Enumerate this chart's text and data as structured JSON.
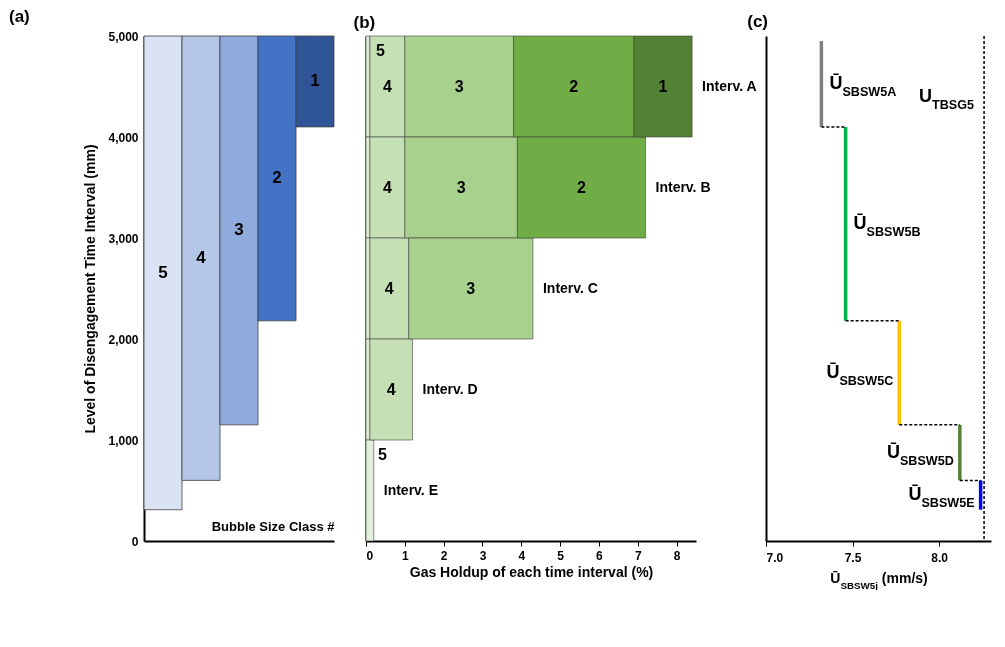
{
  "chart_data": [
    {
      "type": "bar",
      "title": "(a)",
      "xlabel": "Bubble Size Class #",
      "ylabel": "Level of Disengagement Time Interval (mm)",
      "categories": [
        null,
        null,
        null,
        null,
        null
      ],
      "annotations": [
        "5",
        "4",
        "3",
        "2",
        "1"
      ],
      "base": [
        310,
        600,
        1150,
        2180,
        4100
      ],
      "values": [
        4690,
        4400,
        3850,
        2820,
        900
      ],
      "colors": [
        "#dae3f3",
        "#b4c7e7",
        "#8faadc",
        "#4472c4",
        "#2f5597"
      ],
      "ylim": [
        0,
        5000
      ],
      "yticks": [
        0,
        {
          "value": 1000,
          "label": "1,000"
        },
        {
          "value": 2000,
          "label": "2,000"
        },
        {
          "value": 3000,
          "label": "3,000"
        },
        {
          "value": 4000,
          "label": "4,000"
        },
        {
          "value": 5000,
          "label": "5,000"
        }
      ],
      "tick_labels": "y"
    },
    {
      "type": "bar",
      "orientation": "horizontal",
      "stacked": true,
      "title": "(b)",
      "xlabel": "Gas Holdup of each time interval (%)",
      "categories": [
        "Interv. A",
        "Interv. B",
        "Interv. C",
        "Interv. D",
        "Interv. E"
      ],
      "series": [
        {
          "color": "#e2efda",
          "values": [
            0.1,
            0.1,
            0.1,
            0.1,
            0.2
          ]
        },
        {
          "name": "4",
          "color": "#c5e0b4",
          "values": [
            0.9,
            0.9,
            1.0,
            1.1,
            null
          ]
        },
        {
          "name": "3",
          "color": "#a9d18e",
          "values": [
            2.8,
            2.9,
            3.2,
            null,
            null
          ]
        },
        {
          "name": "2",
          "color": "#70ad47",
          "values": [
            3.1,
            3.3,
            null,
            null,
            null
          ]
        },
        {
          "name": "1",
          "color": "#548235",
          "values": [
            1.5,
            null,
            null,
            null,
            null
          ]
        }
      ],
      "xlim": [
        0,
        8.5
      ],
      "xticks": [
        0,
        1,
        2,
        3,
        4,
        5,
        6,
        7,
        8
      ],
      "tick_labels": "x",
      "annotations": [
        {
          "text": "5",
          "x": 0.05,
          "y": "Interv. A"
        },
        {
          "text": "5",
          "x": 0.1,
          "y": "Interv. E"
        }
      ]
    },
    {
      "type": "line",
      "title": "(c)",
      "xlabel": "Ū$_{SBSW5j}$ (mm/s)",
      "xlim": [
        7.0,
        8.3
      ],
      "xticks": [
        {
          "value": 7,
          "label": "7.0"
        },
        7.5,
        {
          "value": 8,
          "label": "8.0"
        }
      ],
      "ylim": [
        0,
        5000
      ],
      "tick_labels": "x",
      "series": [
        {
          "name": "Ū$_{SBSW5A}$",
          "color": "#7f7f7f",
          "x": [
            7.32,
            7.32
          ],
          "values": [
            4100,
            4950
          ]
        },
        {
          "name": "Ū$_{SBSW5B}$",
          "color": "#00b050",
          "x": [
            7.46,
            7.46
          ],
          "values": [
            2180,
            4100
          ]
        },
        {
          "name": "Ū$_{SBSW5C}$",
          "color": "#ffc000",
          "x": [
            7.77,
            7.77
          ],
          "values": [
            1150,
            2180
          ]
        },
        {
          "name": "Ū$_{SBSW5D}$",
          "color": "#548235",
          "x": [
            8.12,
            8.12
          ],
          "values": [
            600,
            1150
          ]
        },
        {
          "name": "Ū$_{SBSW5E}$",
          "color": "#0000ff",
          "x": [
            8.24,
            8.24
          ],
          "values": [
            310,
            600
          ]
        },
        {
          "color": "#000000",
          "line_style": "dashed",
          "x": [
            7.32,
            7.46
          ],
          "values": [
            4100,
            4100
          ]
        },
        {
          "color": "#000000",
          "line_style": "dashed",
          "x": [
            7.46,
            7.77
          ],
          "values": [
            2180,
            2180
          ]
        },
        {
          "color": "#000000",
          "line_style": "dashed",
          "x": [
            7.77,
            8.12
          ],
          "values": [
            1150,
            1150
          ]
        },
        {
          "color": "#000000",
          "line_style": "dashed",
          "x": [
            8.12,
            8.24
          ],
          "values": [
            600,
            600
          ]
        }
      ],
      "ref_lines": [
        {
          "axis": "x",
          "value": 8.26,
          "label": "U$_{TBSG5}$",
          "line_style": "dashed",
          "color": "#000000"
        }
      ]
    }
  ]
}
